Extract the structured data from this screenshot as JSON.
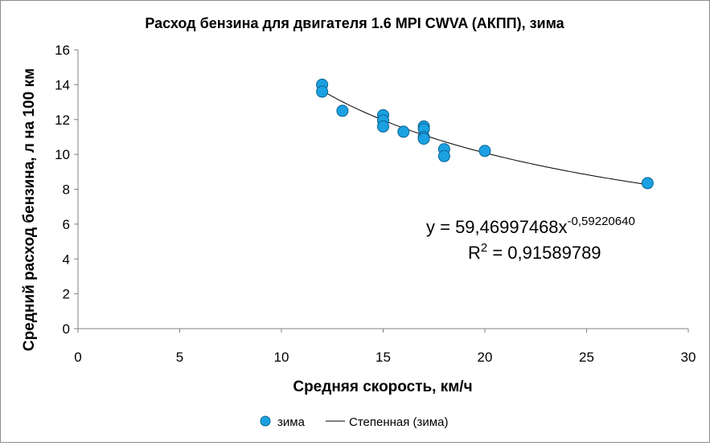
{
  "chart_data": {
    "type": "scatter",
    "title": "Расход бензина для двигателя 1.6 MPI CWVA (АКПП), зима",
    "xlabel": "Средняя скорость, км/ч",
    "ylabel": "Средний расход бензина, л на 100 км",
    "xlim": [
      0,
      30
    ],
    "ylim": [
      0,
      16
    ],
    "x_ticks": [
      "0",
      "5",
      "10",
      "15",
      "20",
      "25",
      "30"
    ],
    "y_ticks": [
      "0",
      "2",
      "4",
      "6",
      "8",
      "10",
      "12",
      "14",
      "16"
    ],
    "grid": false,
    "legend_position": "bottom",
    "series": [
      {
        "name": "зима",
        "color": "#1ba1e2",
        "points": [
          {
            "x": 12,
            "y": 14.0
          },
          {
            "x": 12,
            "y": 13.6
          },
          {
            "x": 13,
            "y": 12.5
          },
          {
            "x": 15,
            "y": 12.25
          },
          {
            "x": 15,
            "y": 11.95
          },
          {
            "x": 15,
            "y": 11.6
          },
          {
            "x": 16,
            "y": 11.3
          },
          {
            "x": 17,
            "y": 11.6
          },
          {
            "x": 17,
            "y": 11.45
          },
          {
            "x": 17,
            "y": 11.0
          },
          {
            "x": 17,
            "y": 10.9
          },
          {
            "x": 18,
            "y": 10.3
          },
          {
            "x": 18,
            "y": 9.9
          },
          {
            "x": 20,
            "y": 10.2
          },
          {
            "x": 28,
            "y": 8.35
          }
        ]
      }
    ],
    "trendline": {
      "name": "Степенная (зима)",
      "type": "power",
      "coefficient": 59.46997468,
      "exponent": -0.5922064,
      "x_range": [
        12,
        28
      ],
      "color": "#000000"
    },
    "equation": {
      "y_prefix": "y = 59,46997468x",
      "exponent": "-0,59220640",
      "r2_prefix": "R",
      "r2_sup": "2",
      "r2_suffix": " = 0,91589789"
    },
    "legend": {
      "marker_label": "зима",
      "line_label": "Степенная (зима)"
    }
  }
}
